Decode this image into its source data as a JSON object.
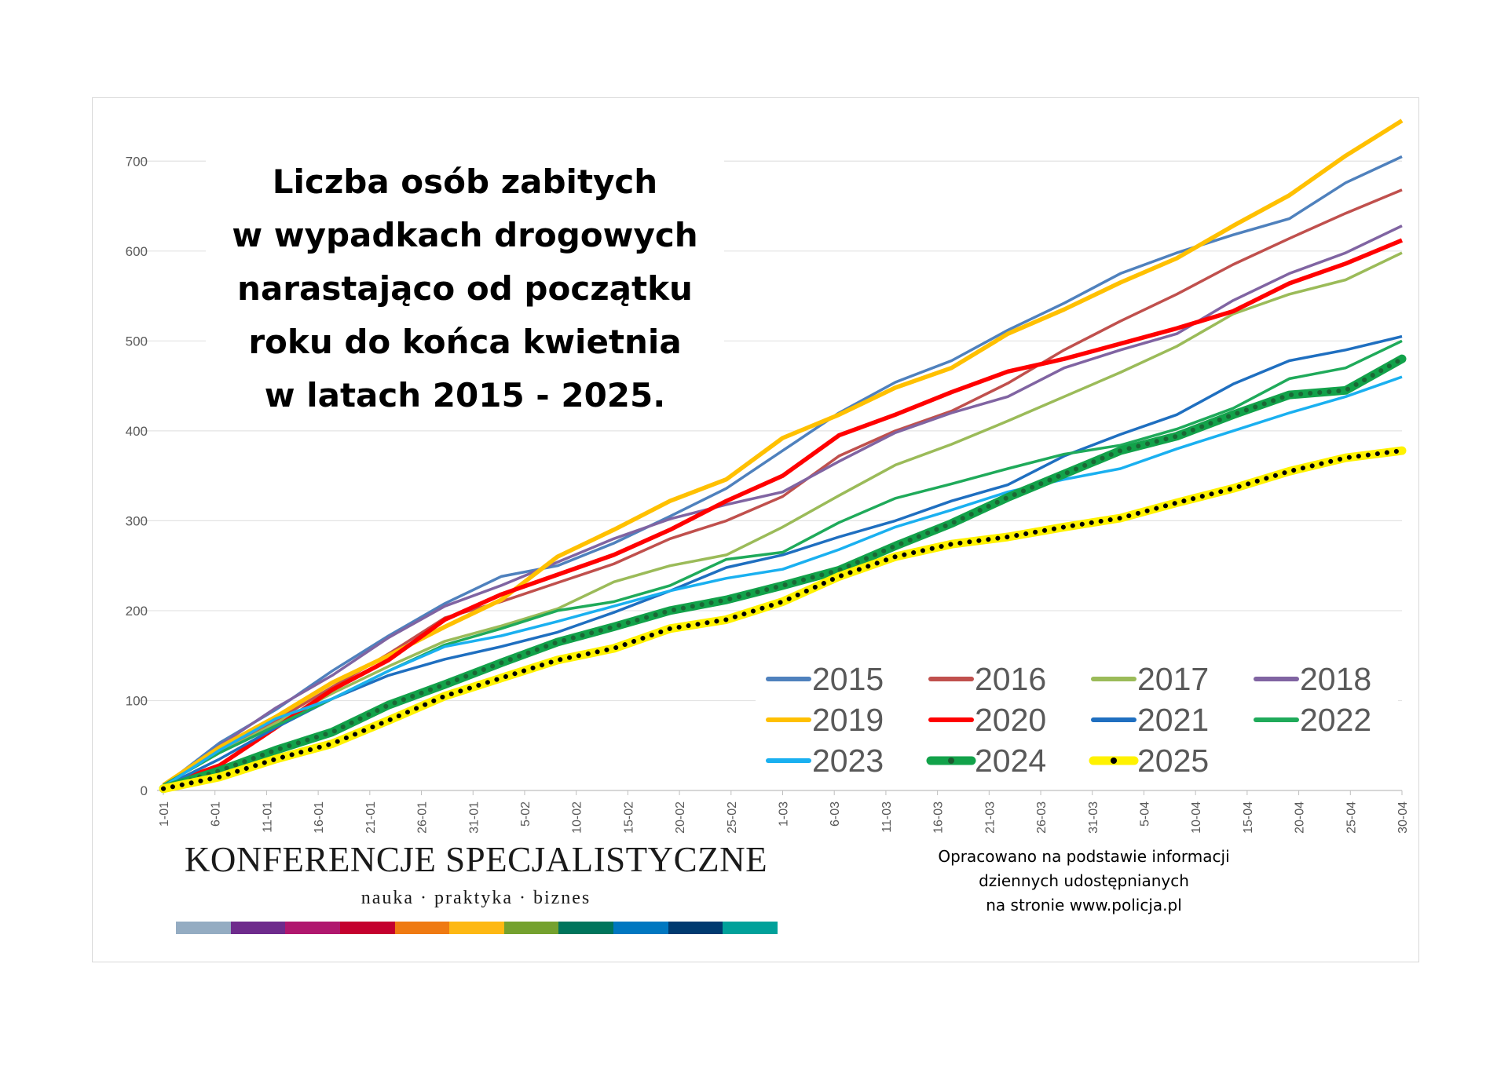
{
  "title_lines": [
    "Liczba osób zabitych",
    "w wypadkach drogowych",
    "narastająco od początku",
    "roku do końca kwietnia",
    "w latach 2015 - 2025."
  ],
  "brand": {
    "name": "KONFERENCJE SPECJALISTYCZNE",
    "tagline": "nauka · praktyka · biznes",
    "stripe_colors": [
      "#94acc2",
      "#6e2b8c",
      "#b0176e",
      "#c4002e",
      "#ef7a12",
      "#fdb813",
      "#74a12e",
      "#00755c",
      "#0077c0",
      "#003a70",
      "#00a19a"
    ]
  },
  "source_lines": [
    "Opracowano na podstawie informacji",
    "dziennych udostępnianych",
    "na stronie www.policja.pl"
  ],
  "chart_data": {
    "type": "line",
    "title": "Liczba osób zabitych w wypadkach drogowych narastająco od początku roku do końca kwietnia w latach 2015 - 2025.",
    "xlabel": "",
    "ylabel": "",
    "ylim": [
      0,
      750
    ],
    "yticks": [
      0,
      100,
      200,
      300,
      400,
      500,
      600,
      700
    ],
    "grid": true,
    "legend_position": "bottom-right",
    "x_ticks": [
      "1-01",
      "6-01",
      "11-01",
      "16-01",
      "21-01",
      "26-01",
      "31-01",
      "5-02",
      "10-02",
      "15-02",
      "20-02",
      "25-02",
      "1-03",
      "6-03",
      "11-03",
      "16-03",
      "21-03",
      "26-03",
      "31-03",
      "5-04",
      "10-04",
      "15-04",
      "20-04",
      "25-04",
      "30-04"
    ],
    "series": [
      {
        "name": "2015",
        "color": "#4f81bd",
        "style": "plain",
        "values": [
          5,
          53,
          90,
          133,
          172,
          208,
          238,
          250,
          275,
          305,
          336,
          378,
          420,
          454,
          478,
          512,
          542,
          575,
          598,
          618,
          636,
          676,
          705
        ]
      },
      {
        "name": "2016",
        "color": "#c0504d",
        "style": "plain",
        "values": [
          6,
          45,
          78,
          115,
          152,
          192,
          210,
          231,
          252,
          280,
          300,
          327,
          372,
          400,
          422,
          453,
          490,
          522,
          552,
          585,
          614,
          642,
          668
        ]
      },
      {
        "name": "2017",
        "color": "#9bbb59",
        "style": "plain",
        "values": [
          6,
          42,
          75,
          108,
          138,
          166,
          183,
          202,
          232,
          250,
          262,
          293,
          328,
          362,
          385,
          411,
          438,
          465,
          494,
          530,
          552,
          568,
          598
        ]
      },
      {
        "name": "2018",
        "color": "#8064a2",
        "style": "plain",
        "values": [
          4,
          50,
          92,
          128,
          170,
          205,
          228,
          254,
          280,
          302,
          318,
          332,
          366,
          398,
          420,
          438,
          470,
          490,
          508,
          545,
          575,
          598,
          628
        ]
      },
      {
        "name": "2019",
        "color": "#ffc000",
        "style": "plain",
        "values": [
          6,
          48,
          82,
          120,
          150,
          182,
          212,
          260,
          290,
          322,
          346,
          392,
          418,
          448,
          470,
          508,
          535,
          565,
          592,
          628,
          662,
          706,
          745
        ]
      },
      {
        "name": "2020",
        "color": "#ff0000",
        "style": "plain",
        "values": [
          5,
          28,
          70,
          112,
          145,
          190,
          218,
          240,
          262,
          290,
          322,
          350,
          395,
          418,
          443,
          466,
          480,
          497,
          514,
          533,
          564,
          586,
          612
        ]
      },
      {
        "name": "2021",
        "color": "#1f6fc0",
        "style": "plain",
        "values": [
          4,
          35,
          70,
          102,
          128,
          146,
          160,
          176,
          198,
          222,
          248,
          262,
          282,
          300,
          322,
          340,
          372,
          396,
          418,
          452,
          478,
          490,
          505
        ]
      },
      {
        "name": "2022",
        "color": "#1faa5a",
        "style": "plain",
        "values": [
          6,
          42,
          72,
          102,
          133,
          162,
          180,
          200,
          210,
          228,
          257,
          265,
          298,
          325,
          341,
          358,
          374,
          384,
          402,
          425,
          458,
          470,
          500
        ]
      },
      {
        "name": "2023",
        "color": "#1ab0f0",
        "style": "plain",
        "values": [
          4,
          45,
          80,
          102,
          133,
          160,
          172,
          188,
          205,
          222,
          236,
          246,
          268,
          293,
          312,
          332,
          346,
          358,
          380,
          400,
          420,
          438,
          460
        ]
      },
      {
        "name": "2024",
        "color": "#12a24a",
        "style": "dotted",
        "values": [
          2,
          22,
          45,
          65,
          95,
          118,
          142,
          165,
          182,
          200,
          212,
          228,
          245,
          272,
          297,
          326,
          352,
          378,
          394,
          418,
          440,
          445,
          480
        ]
      },
      {
        "name": "2025",
        "color": "#fff200",
        "style": "dotted",
        "values": [
          2,
          15,
          35,
          52,
          78,
          105,
          125,
          145,
          158,
          180,
          190,
          210,
          238,
          260,
          274,
          282,
          293,
          303,
          320,
          336,
          355,
          370,
          378
        ]
      }
    ]
  }
}
